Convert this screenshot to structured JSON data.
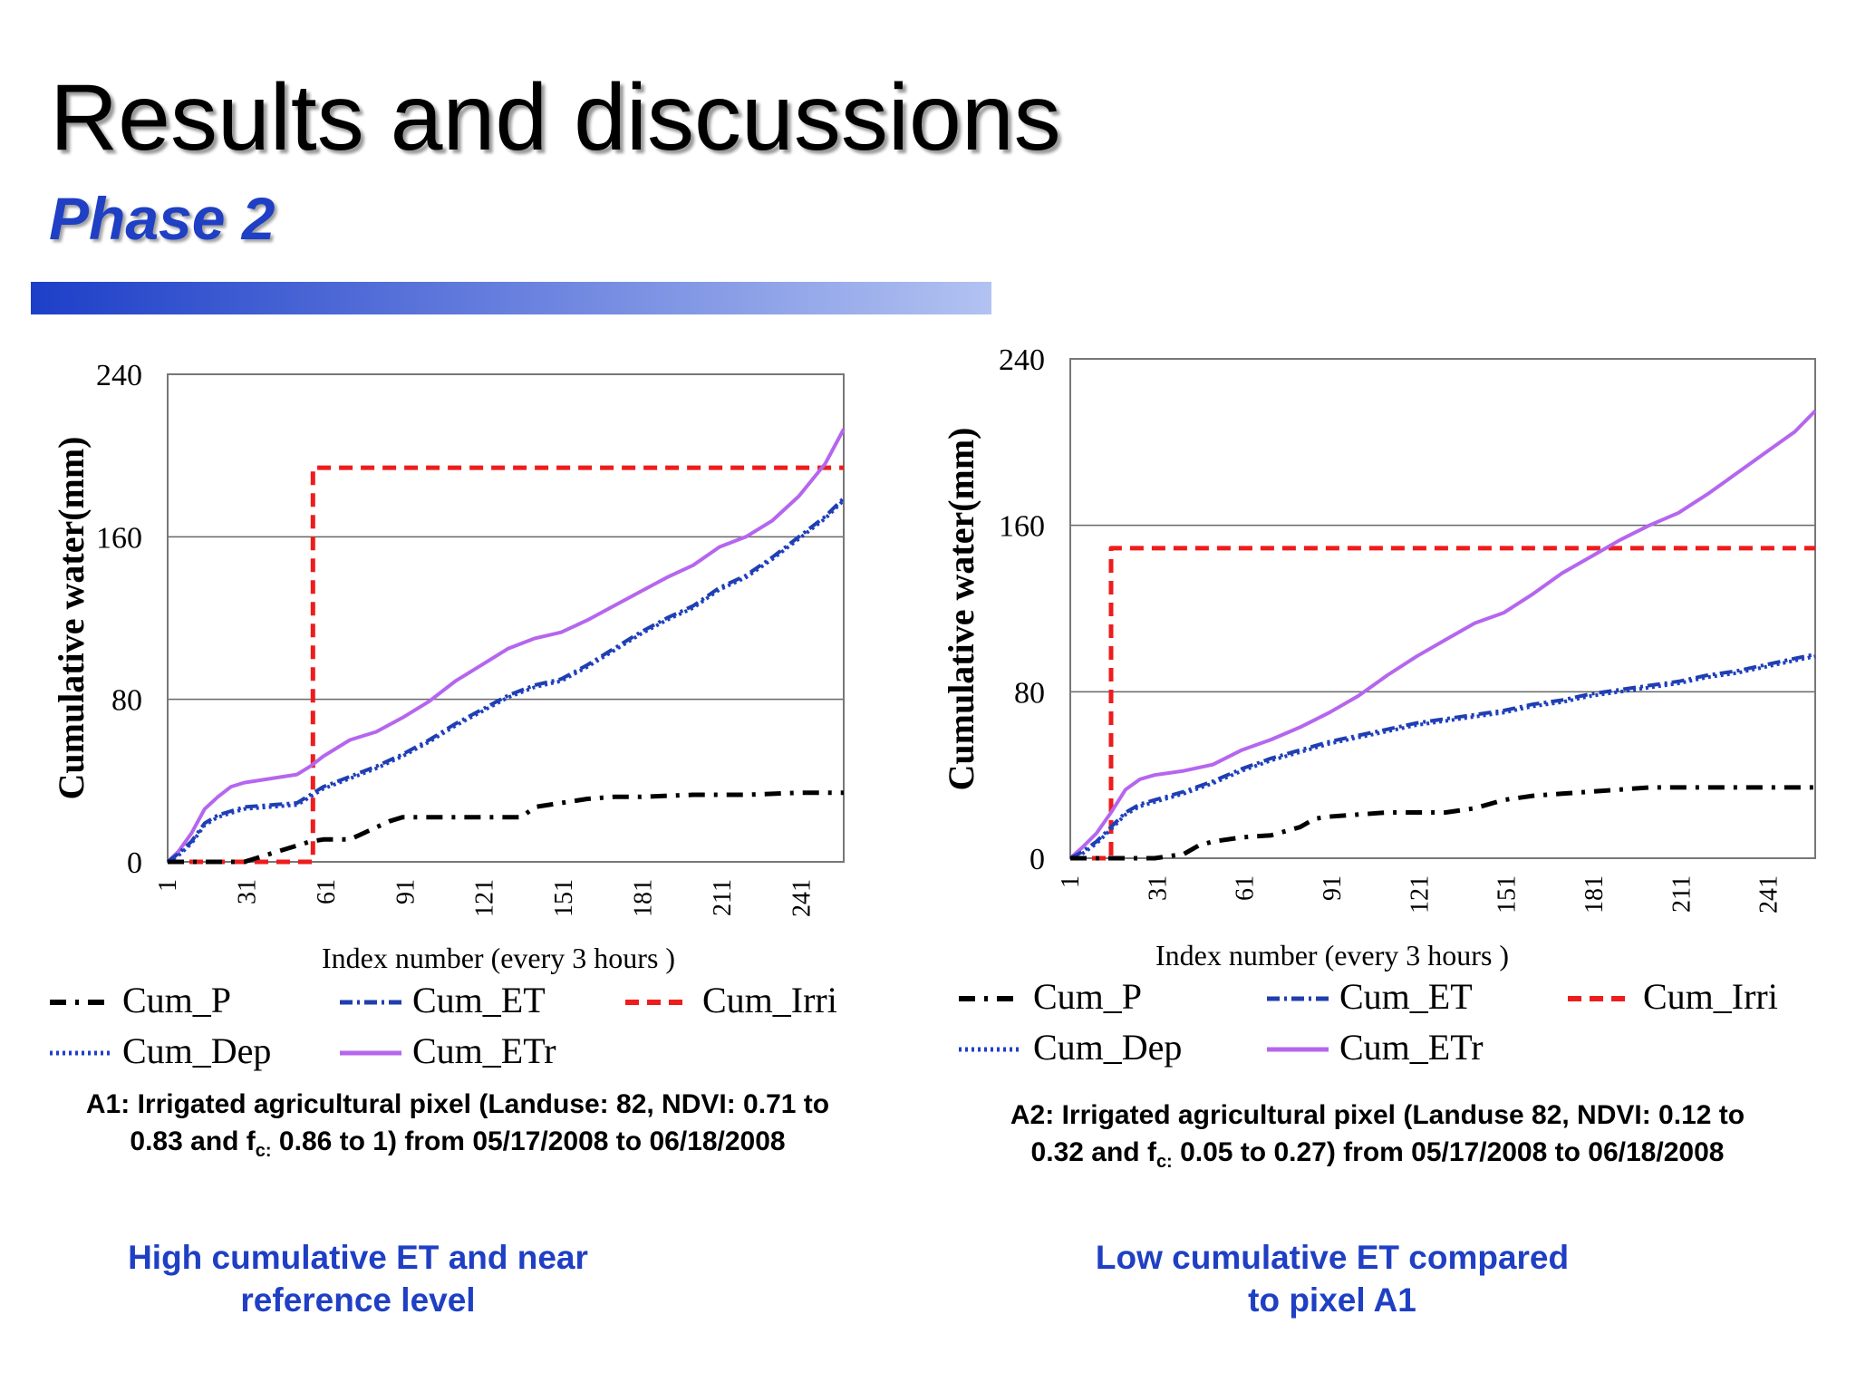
{
  "header": {
    "title": "Results and discussions",
    "subtitle": "Phase 2"
  },
  "legend_labels": [
    "Cum_P",
    "Cum_ET",
    "Cum_Irri",
    "Cum_Dep",
    "Cum_ETr"
  ],
  "colors": {
    "Cum_P": "#000000",
    "Cum_ET": "#1f3fae",
    "Cum_Irri": "#ee1c1c",
    "Cum_Dep": "#1f3fc4",
    "Cum_ETr": "#b566ee",
    "accent": "#1f3fc4"
  },
  "captions": {
    "a1_line1": "A1: Irrigated agricultural pixel (Landuse: 82, NDVI: 0.71 to",
    "a1_line2_pre": "0.83 and f",
    "a1_line2_sub": "c:",
    "a1_line2_post": " 0.86 to 1) from 05/17/2008 to 06/18/2008",
    "a2_line1": "A2: Irrigated agricultural pixel (Landuse 82, NDVI: 0.12 to",
    "a2_line2_pre": "0.32 and f",
    "a2_line2_sub": "c:",
    "a2_line2_post": " 0.05 to 0.27) from 05/17/2008 to 06/18/2008"
  },
  "notes": {
    "left_line1": "High cumulative ET and near",
    "left_line2": "reference level",
    "right_line1": "Low cumulative ET compared",
    "right_line2": "to pixel A1"
  },
  "chart_data": [
    {
      "type": "line",
      "id": "A1",
      "ylabel": "Cumulative  water(mm)",
      "xlabel": "Index number (every 3 hours )",
      "ylim": [
        0,
        240
      ],
      "xlim": [
        1,
        257
      ],
      "yticks": [
        0,
        80,
        160,
        240
      ],
      "xticks": [
        1,
        31,
        61,
        91,
        121,
        151,
        181,
        211,
        241
      ],
      "grid": "horizontal",
      "legend_position": "bottom",
      "series": [
        {
          "name": "Cum_Irri",
          "style": "dash",
          "x": [
            1,
            56,
            56,
            257
          ],
          "y": [
            0,
            0,
            194,
            194
          ]
        },
        {
          "name": "Cum_ETr",
          "style": "solid",
          "x": [
            1,
            5,
            10,
            15,
            20,
            25,
            30,
            40,
            50,
            55,
            60,
            70,
            80,
            90,
            100,
            110,
            120,
            130,
            140,
            150,
            160,
            170,
            180,
            190,
            200,
            210,
            220,
            230,
            240,
            250,
            257
          ],
          "y": [
            0,
            5,
            14,
            26,
            32,
            37,
            39,
            41,
            43,
            47,
            52,
            60,
            64,
            71,
            79,
            89,
            97,
            105,
            110,
            113,
            119,
            126,
            133,
            140,
            146,
            155,
            160,
            168,
            180,
            196,
            213
          ]
        },
        {
          "name": "Cum_ET",
          "style": "dash-dot",
          "x": [
            1,
            5,
            10,
            15,
            20,
            25,
            30,
            40,
            50,
            55,
            60,
            70,
            80,
            90,
            100,
            110,
            120,
            130,
            140,
            150,
            160,
            170,
            180,
            190,
            200,
            210,
            220,
            230,
            240,
            250,
            257
          ],
          "y": [
            0,
            4,
            10,
            19,
            23,
            25,
            27,
            28,
            29,
            33,
            37,
            42,
            47,
            53,
            60,
            68,
            75,
            82,
            87,
            90,
            97,
            105,
            113,
            120,
            126,
            135,
            141,
            150,
            160,
            170,
            179
          ]
        },
        {
          "name": "Cum_Dep",
          "style": "dot",
          "x": [
            1,
            5,
            10,
            15,
            20,
            25,
            30,
            40,
            50,
            55,
            60,
            70,
            80,
            90,
            100,
            110,
            120,
            130,
            140,
            150,
            160,
            170,
            180,
            190,
            200,
            210,
            220,
            230,
            240,
            250,
            257
          ],
          "y": [
            0,
            3,
            9,
            18,
            22,
            24,
            26,
            27,
            28,
            32,
            36,
            41,
            46,
            52,
            59,
            67,
            74,
            81,
            86,
            89,
            96,
            104,
            112,
            119,
            125,
            134,
            140,
            149,
            159,
            169,
            178
          ]
        },
        {
          "name": "Cum_P",
          "style": "long-dash-dot",
          "x": [
            1,
            20,
            30,
            40,
            50,
            55,
            60,
            70,
            75,
            85,
            90,
            100,
            110,
            125,
            135,
            140,
            150,
            160,
            170,
            180,
            200,
            220,
            240,
            257
          ],
          "y": [
            0,
            0,
            0,
            4,
            8,
            10,
            11,
            11,
            14,
            20,
            22,
            22,
            22,
            22,
            22,
            27,
            29,
            31,
            32,
            32,
            33,
            33,
            34,
            34
          ]
        }
      ]
    },
    {
      "type": "line",
      "id": "A2",
      "ylabel": "Cumulative  water(mm)",
      "xlabel": "Index number (every 3 hours )",
      "ylim": [
        0,
        240
      ],
      "xlim": [
        1,
        257
      ],
      "yticks": [
        0,
        80,
        160,
        240
      ],
      "xticks": [
        1,
        31,
        61,
        91,
        121,
        151,
        181,
        211,
        241
      ],
      "grid": "horizontal",
      "legend_position": "bottom",
      "series": [
        {
          "name": "Cum_Irri",
          "style": "dash",
          "x": [
            1,
            15,
            15,
            257
          ],
          "y": [
            0,
            0,
            149,
            149
          ]
        },
        {
          "name": "Cum_ETr",
          "style": "solid",
          "x": [
            1,
            5,
            10,
            15,
            20,
            25,
            30,
            40,
            50,
            60,
            70,
            80,
            90,
            100,
            110,
            120,
            130,
            140,
            150,
            160,
            170,
            180,
            190,
            200,
            210,
            220,
            230,
            240,
            250,
            257
          ],
          "y": [
            0,
            5,
            12,
            22,
            33,
            38,
            40,
            42,
            45,
            52,
            57,
            63,
            70,
            78,
            88,
            97,
            105,
            113,
            118,
            127,
            137,
            145,
            153,
            160,
            166,
            175,
            185,
            195,
            205,
            215
          ]
        },
        {
          "name": "Cum_ET",
          "style": "dash-dot",
          "x": [
            1,
            5,
            10,
            15,
            20,
            25,
            30,
            40,
            50,
            60,
            70,
            80,
            90,
            100,
            110,
            120,
            130,
            140,
            150,
            160,
            170,
            180,
            190,
            200,
            210,
            220,
            230,
            240,
            250,
            257
          ],
          "y": [
            0,
            3,
            8,
            15,
            22,
            26,
            28,
            32,
            37,
            43,
            48,
            52,
            56,
            59,
            62,
            65,
            67,
            69,
            71,
            74,
            76,
            79,
            81,
            83,
            85,
            88,
            90,
            93,
            96,
            98
          ]
        },
        {
          "name": "Cum_Dep",
          "style": "dot",
          "x": [
            1,
            5,
            10,
            15,
            20,
            25,
            30,
            40,
            50,
            60,
            70,
            80,
            90,
            100,
            110,
            120,
            130,
            140,
            150,
            160,
            170,
            180,
            190,
            200,
            210,
            220,
            230,
            240,
            250,
            257
          ],
          "y": [
            0,
            2,
            7,
            14,
            21,
            25,
            27,
            31,
            36,
            42,
            47,
            51,
            55,
            58,
            61,
            64,
            66,
            68,
            70,
            73,
            75,
            78,
            80,
            82,
            84,
            87,
            89,
            92,
            95,
            97
          ]
        },
        {
          "name": "Cum_P",
          "style": "long-dash-dot",
          "x": [
            1,
            20,
            30,
            40,
            45,
            50,
            60,
            70,
            80,
            85,
            90,
            100,
            110,
            120,
            130,
            140,
            150,
            160,
            170,
            180,
            190,
            200,
            220,
            240,
            257
          ],
          "y": [
            0,
            0,
            0,
            2,
            6,
            8,
            10,
            11,
            15,
            19,
            20,
            21,
            22,
            22,
            22,
            24,
            28,
            30,
            31,
            32,
            33,
            34,
            34,
            34,
            34
          ]
        }
      ]
    }
  ]
}
